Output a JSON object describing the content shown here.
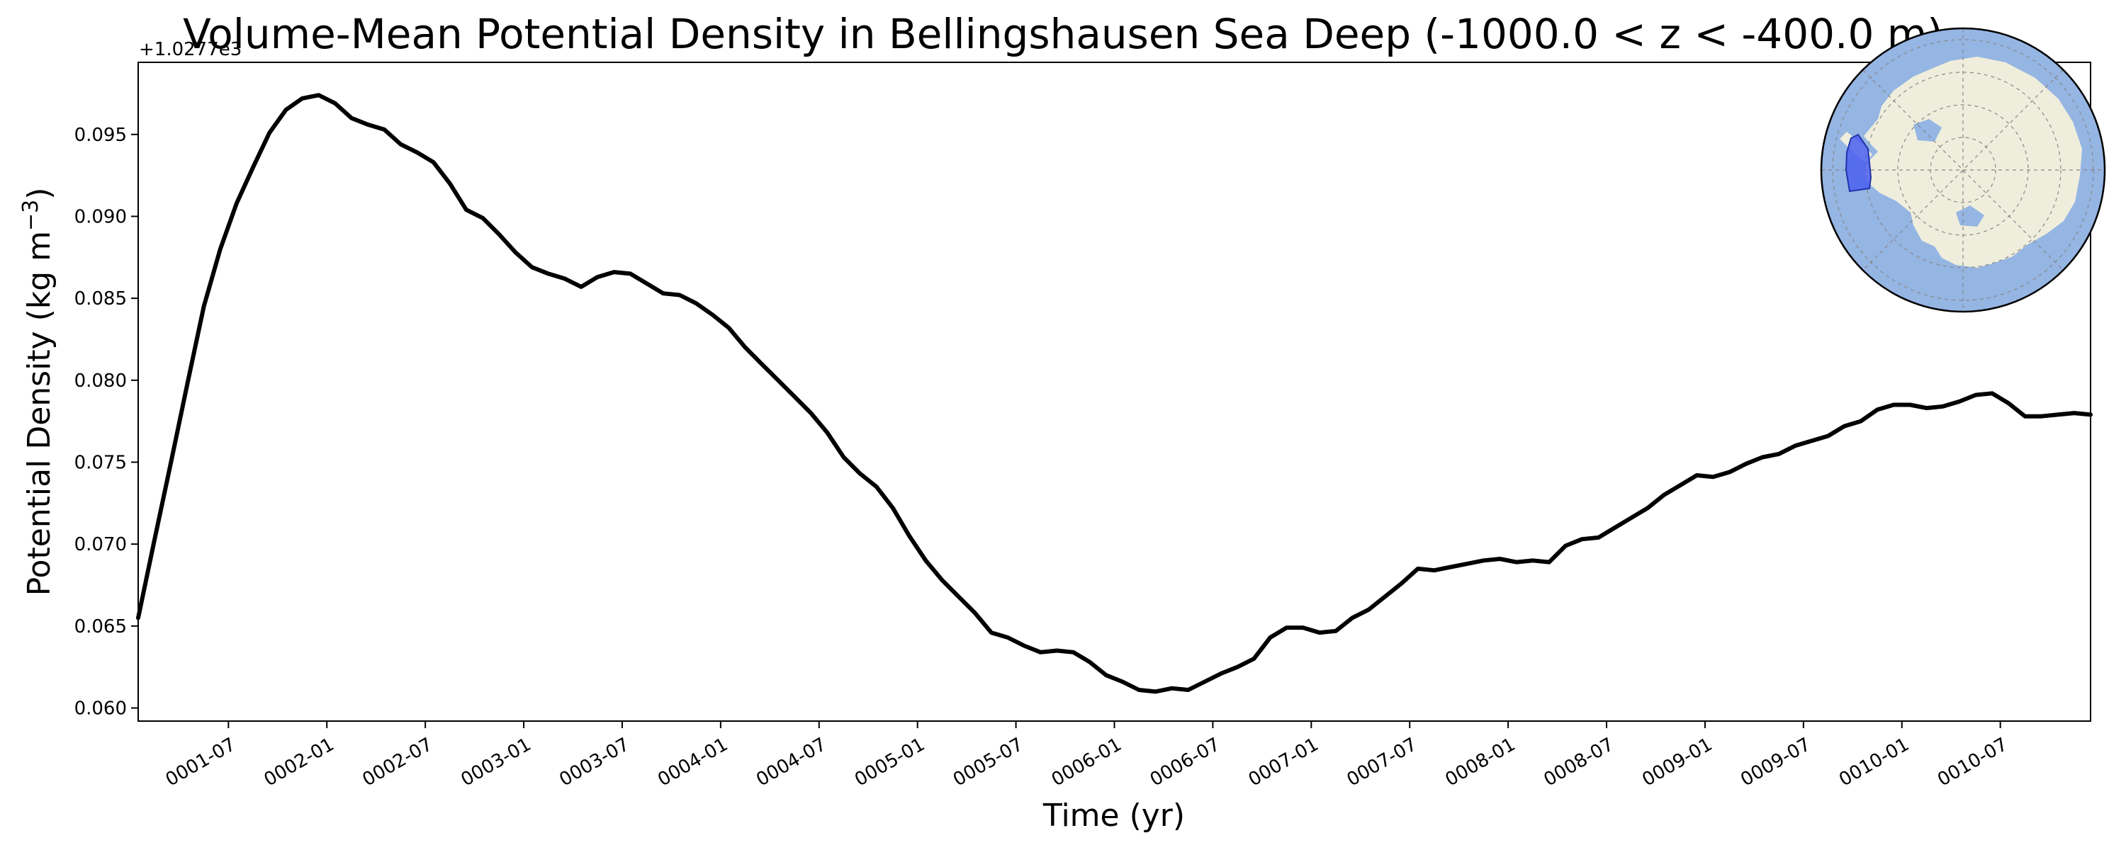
{
  "chart_data": {
    "type": "line",
    "title": "Volume-Mean Potential Density in Bellingshausen Sea Deep (-1000.0 < z < -400.0 m)",
    "xlabel": "Time (yr)",
    "ylabel_main": "Potential Density (kg m",
    "ylabel_sup": "−3",
    "ylabel_end": ")",
    "y_offset_label": "+1.0277e3",
    "ylim": [
      0.0592,
      0.0994
    ],
    "y_ticks": [
      0.06,
      0.065,
      0.07,
      0.075,
      0.08,
      0.085,
      0.09,
      0.095
    ],
    "y_tick_labels": [
      "0.060",
      "0.065",
      "0.070",
      "0.075",
      "0.080",
      "0.085",
      "0.090",
      "0.095"
    ],
    "x_ticks": [
      5.5,
      11.5,
      17.5,
      23.5,
      29.5,
      35.5,
      41.5,
      47.5,
      53.5,
      59.5,
      65.5,
      71.5,
      77.5,
      83.5,
      89.5,
      95.5,
      101.5,
      107.5,
      113.5
    ],
    "x_tick_labels": [
      "0001-07",
      "0002-01",
      "0002-07",
      "0003-01",
      "0003-07",
      "0004-01",
      "0004-07",
      "0005-01",
      "0005-07",
      "0006-01",
      "0006-07",
      "0007-01",
      "0007-07",
      "0008-01",
      "0008-07",
      "0009-01",
      "0009-07",
      "0010-01",
      "0010-07"
    ],
    "xlim": [
      0,
      119
    ],
    "grid": false,
    "line_color": "#000000",
    "series": [
      {
        "x": [
          0,
          1,
          2,
          3,
          4,
          5,
          6,
          7,
          8,
          9,
          10,
          11,
          12,
          13,
          14,
          15,
          16,
          17,
          18,
          19,
          20,
          21,
          22,
          23,
          24,
          25,
          26,
          27,
          28,
          29,
          30,
          31,
          32,
          33,
          34,
          35,
          36,
          37,
          38,
          39,
          40,
          41,
          42,
          43,
          44,
          45,
          46,
          47,
          48,
          49,
          50,
          51,
          52,
          53,
          54,
          55,
          56,
          57,
          58,
          59,
          60,
          61,
          62,
          63,
          64,
          65,
          66,
          67,
          68,
          69,
          70,
          71,
          72,
          73,
          74,
          75,
          76,
          77,
          78,
          79,
          80,
          81,
          82,
          83,
          84,
          85,
          86,
          87,
          88,
          89,
          90,
          91,
          92,
          93,
          94,
          95,
          96,
          97,
          98,
          99,
          100,
          101,
          102,
          103,
          104,
          105,
          106,
          107,
          108,
          109,
          110,
          111,
          112,
          113,
          114,
          115,
          116,
          117,
          118,
          119
        ],
        "values": [
          0.0655,
          0.0703,
          0.075,
          0.0798,
          0.0845,
          0.088,
          0.0908,
          0.093,
          0.0951,
          0.0965,
          0.0972,
          0.0974,
          0.0969,
          0.096,
          0.0956,
          0.0953,
          0.0944,
          0.0939,
          0.0933,
          0.092,
          0.0904,
          0.0899,
          0.0889,
          0.0878,
          0.0869,
          0.0865,
          0.0862,
          0.0857,
          0.0863,
          0.0866,
          0.0865,
          0.0859,
          0.0853,
          0.0852,
          0.0847,
          0.084,
          0.0832,
          0.082,
          0.081,
          0.08,
          0.079,
          0.078,
          0.0768,
          0.0753,
          0.0743,
          0.0735,
          0.0722,
          0.0705,
          0.069,
          0.0678,
          0.0668,
          0.0658,
          0.0646,
          0.0643,
          0.0638,
          0.0634,
          0.0635,
          0.0634,
          0.0628,
          0.062,
          0.0616,
          0.0611,
          0.061,
          0.0612,
          0.0611,
          0.0616,
          0.0621,
          0.0625,
          0.063,
          0.0643,
          0.0649,
          0.0649,
          0.0646,
          0.0647,
          0.0655,
          0.066,
          0.0668,
          0.0676,
          0.0685,
          0.0684,
          0.0686,
          0.0688,
          0.069,
          0.0691,
          0.0689,
          0.069,
          0.0689,
          0.0699,
          0.0703,
          0.0704,
          0.071,
          0.0716,
          0.0722,
          0.073,
          0.0736,
          0.0742,
          0.0741,
          0.0744,
          0.0749,
          0.0753,
          0.0755,
          0.076,
          0.0763,
          0.0766,
          0.0772,
          0.0775,
          0.0782,
          0.0785,
          0.0785,
          0.0783,
          0.0784,
          0.0787,
          0.0791,
          0.0792,
          0.0786,
          0.0778,
          0.0778,
          0.0779,
          0.078,
          0.0779
        ]
      }
    ]
  },
  "inset_map": {
    "ocean_color": "#95b5e3",
    "land_color": "#efeedc",
    "region_color": "#4a5ff0"
  }
}
